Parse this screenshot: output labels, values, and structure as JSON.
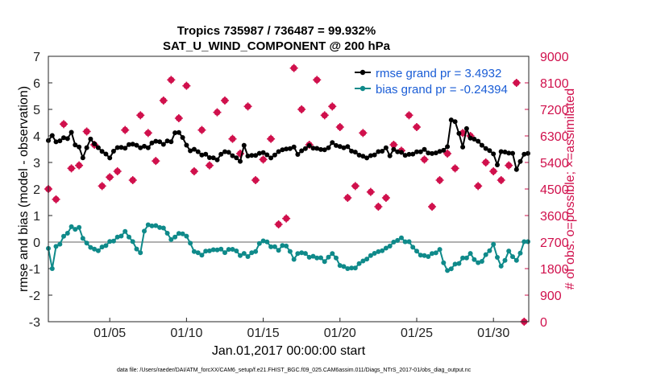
{
  "chart_data": {
    "type": "line",
    "title_line1": "Tropics 735987 / 736487 = 99.932%",
    "title_line2": "SAT_U_WIND_COMPONENT @ 200 hPa",
    "ylabel_left": "rmse and bias (model - observation)",
    "ylabel_right": "# of obs: o=possible; ×=assimilated",
    "xlabel": "Jan.01,2017 00:00:00 start",
    "footer": "data file: /Users/raeder/DAI/ATM_forcXX/CAM6_setup/f.e21.FHIST_BGC.f09_025.CAM6assim.011/Diags_NTrS_2017-01/obs_diag_output.nc",
    "ylim_left": [
      -3,
      7
    ],
    "yticks_left": [
      "-3",
      "-2",
      "-1",
      "0",
      "1",
      "2",
      "3",
      "4",
      "5",
      "6",
      "7"
    ],
    "ylim_right": [
      0,
      9000
    ],
    "yticks_right": [
      "0",
      "900",
      "1800",
      "2700",
      "3600",
      "4500",
      "5400",
      "6300",
      "7200",
      "8100",
      "9000"
    ],
    "xlim": [
      1,
      32.3
    ],
    "xticks": [
      {
        "day": 5,
        "label": "01/05"
      },
      {
        "day": 10,
        "label": "01/10"
      },
      {
        "day": 15,
        "label": "01/15"
      },
      {
        "day": 20,
        "label": "01/20"
      },
      {
        "day": 25,
        "label": "01/25"
      },
      {
        "day": 30,
        "label": "01/30"
      }
    ],
    "legend": {
      "placement": "top-right",
      "rmse_label": "rmse grand pr = 3.4932",
      "bias_label": "bias grand pr = -0.24394"
    },
    "colors": {
      "rmse": "#000000",
      "bias": "#0f8a8a",
      "obs": "#d0104c",
      "zero_line": "#b0b0b0",
      "legend_text": "#1a5dd6"
    },
    "rmse_keypoints": [
      [
        1.0,
        3.8
      ],
      [
        1.25,
        4.0
      ],
      [
        1.5,
        3.75
      ],
      [
        2.0,
        3.95
      ],
      [
        2.25,
        3.9
      ],
      [
        2.5,
        4.1
      ],
      [
        2.75,
        3.65
      ],
      [
        3.0,
        3.6
      ],
      [
        3.25,
        3.2
      ],
      [
        3.5,
        3.55
      ],
      [
        3.75,
        3.85
      ],
      [
        4.0,
        3.7
      ],
      [
        4.5,
        3.45
      ],
      [
        5.0,
        3.15
      ],
      [
        5.25,
        3.4
      ],
      [
        5.5,
        3.6
      ],
      [
        6.0,
        3.55
      ],
      [
        6.5,
        3.7
      ],
      [
        7.0,
        3.6
      ],
      [
        7.5,
        3.55
      ],
      [
        8.0,
        3.85
      ],
      [
        8.5,
        3.7
      ],
      [
        9.0,
        3.8
      ],
      [
        9.4,
        4.3
      ],
      [
        9.75,
        3.9
      ],
      [
        10.0,
        3.65
      ],
      [
        10.25,
        3.4
      ],
      [
        10.5,
        3.55
      ],
      [
        10.75,
        3.4
      ],
      [
        11.0,
        3.3
      ],
      [
        11.5,
        3.2
      ],
      [
        12.0,
        3.15
      ],
      [
        12.5,
        3.4
      ],
      [
        13.0,
        3.3
      ],
      [
        13.5,
        3.05
      ],
      [
        13.75,
        3.6
      ],
      [
        14.0,
        3.25
      ],
      [
        14.5,
        3.3
      ],
      [
        15.0,
        3.35
      ],
      [
        15.5,
        3.2
      ],
      [
        16.0,
        3.4
      ],
      [
        16.5,
        3.5
      ],
      [
        17.0,
        3.6
      ],
      [
        17.25,
        3.3
      ],
      [
        17.5,
        3.4
      ],
      [
        18.0,
        3.65
      ],
      [
        18.5,
        3.5
      ],
      [
        19.0,
        3.45
      ],
      [
        19.5,
        3.75
      ],
      [
        20.0,
        3.55
      ],
      [
        20.5,
        3.6
      ],
      [
        21.0,
        3.35
      ],
      [
        21.5,
        3.2
      ],
      [
        22.0,
        3.25
      ],
      [
        22.5,
        3.35
      ],
      [
        23.0,
        3.55
      ],
      [
        23.25,
        3.3
      ],
      [
        23.5,
        3.45
      ],
      [
        24.0,
        3.35
      ],
      [
        24.5,
        3.3
      ],
      [
        25.0,
        3.35
      ],
      [
        25.5,
        3.5
      ],
      [
        26.0,
        3.3
      ],
      [
        26.5,
        3.4
      ],
      [
        27.0,
        3.6
      ],
      [
        27.25,
        4.6
      ],
      [
        27.5,
        4.5
      ],
      [
        27.75,
        4.1
      ],
      [
        28.0,
        3.6
      ],
      [
        28.25,
        4.3
      ],
      [
        28.5,
        3.9
      ],
      [
        29.0,
        3.8
      ],
      [
        29.5,
        3.55
      ],
      [
        30.0,
        3.3
      ],
      [
        30.25,
        2.9
      ],
      [
        30.5,
        3.45
      ],
      [
        31.0,
        3.35
      ],
      [
        31.25,
        3.3
      ],
      [
        31.5,
        2.75
      ],
      [
        32.0,
        3.35
      ],
      [
        32.25,
        3.3
      ]
    ],
    "bias_keypoints": [
      [
        1.0,
        -0.3
      ],
      [
        1.25,
        -1.0
      ],
      [
        1.5,
        -0.2
      ],
      [
        2.0,
        0.2
      ],
      [
        2.5,
        0.5
      ],
      [
        3.0,
        0.55
      ],
      [
        3.25,
        0.2
      ],
      [
        3.5,
        -0.1
      ],
      [
        4.0,
        -0.3
      ],
      [
        4.5,
        -0.2
      ],
      [
        5.0,
        -0.05
      ],
      [
        5.5,
        0.2
      ],
      [
        6.0,
        0.35
      ],
      [
        6.5,
        0.0
      ],
      [
        7.0,
        -0.4
      ],
      [
        7.25,
        0.4
      ],
      [
        7.5,
        0.6
      ],
      [
        8.0,
        0.65
      ],
      [
        8.5,
        0.5
      ],
      [
        9.0,
        0.1
      ],
      [
        9.5,
        0.35
      ],
      [
        10.0,
        0.2
      ],
      [
        10.5,
        -0.3
      ],
      [
        11.0,
        -0.5
      ],
      [
        11.5,
        -0.3
      ],
      [
        12.0,
        -0.25
      ],
      [
        12.5,
        -0.4
      ],
      [
        13.0,
        -0.2
      ],
      [
        13.5,
        -0.5
      ],
      [
        14.0,
        -0.5
      ],
      [
        14.5,
        -0.3
      ],
      [
        15.0,
        0.05
      ],
      [
        15.5,
        -0.1
      ],
      [
        16.0,
        -0.3
      ],
      [
        16.5,
        -0.1
      ],
      [
        17.0,
        -0.6
      ],
      [
        17.5,
        -0.4
      ],
      [
        18.0,
        -0.5
      ],
      [
        18.5,
        -0.6
      ],
      [
        19.0,
        -0.7
      ],
      [
        19.5,
        -0.4
      ],
      [
        20.0,
        -0.9
      ],
      [
        20.5,
        -0.95
      ],
      [
        21.0,
        -1.0
      ],
      [
        21.5,
        -0.7
      ],
      [
        22.0,
        -0.5
      ],
      [
        22.5,
        -0.4
      ],
      [
        23.0,
        -0.2
      ],
      [
        23.5,
        -0.05
      ],
      [
        24.0,
        0.15
      ],
      [
        24.5,
        0.0
      ],
      [
        25.0,
        -0.4
      ],
      [
        25.5,
        -0.5
      ],
      [
        26.0,
        -0.5
      ],
      [
        26.5,
        -0.3
      ],
      [
        27.0,
        -1.1
      ],
      [
        27.5,
        -0.9
      ],
      [
        28.0,
        -0.6
      ],
      [
        28.5,
        -0.5
      ],
      [
        29.0,
        -0.8
      ],
      [
        29.5,
        -0.5
      ],
      [
        30.0,
        -0.15
      ],
      [
        30.5,
        -0.9
      ],
      [
        31.0,
        -0.4
      ],
      [
        31.5,
        -0.7
      ],
      [
        32.0,
        0.0
      ],
      [
        32.25,
        0.0
      ]
    ],
    "obs_points": [
      [
        1.0,
        4500
      ],
      [
        1.5,
        4150
      ],
      [
        2.0,
        6700
      ],
      [
        2.5,
        5200
      ],
      [
        3.0,
        5300
      ],
      [
        3.5,
        6450
      ],
      [
        4.0,
        6000
      ],
      [
        4.5,
        4600
      ],
      [
        5.0,
        4900
      ],
      [
        5.5,
        5100
      ],
      [
        6.0,
        6500
      ],
      [
        6.5,
        4800
      ],
      [
        7.0,
        7000
      ],
      [
        7.5,
        6400
      ],
      [
        8.0,
        5450
      ],
      [
        8.5,
        7500
      ],
      [
        9.0,
        8200
      ],
      [
        9.5,
        6900
      ],
      [
        10.0,
        8000
      ],
      [
        10.5,
        5100
      ],
      [
        11.0,
        6500
      ],
      [
        11.5,
        5300
      ],
      [
        12.0,
        7100
      ],
      [
        12.5,
        7500
      ],
      [
        13.0,
        6200
      ],
      [
        13.5,
        5700
      ],
      [
        14.0,
        7300
      ],
      [
        14.5,
        4800
      ],
      [
        15.0,
        5500
      ],
      [
        15.5,
        6200
      ],
      [
        16.0,
        3300
      ],
      [
        16.5,
        3500
      ],
      [
        17.0,
        8600
      ],
      [
        17.5,
        7200
      ],
      [
        18.0,
        6000
      ],
      [
        18.5,
        8200
      ],
      [
        19.0,
        7000
      ],
      [
        19.5,
        7300
      ],
      [
        20.0,
        6600
      ],
      [
        20.5,
        4200
      ],
      [
        21.0,
        4600
      ],
      [
        21.5,
        6400
      ],
      [
        22.0,
        4400
      ],
      [
        22.5,
        3900
      ],
      [
        23.0,
        4200
      ],
      [
        23.5,
        6000
      ],
      [
        24.0,
        5800
      ],
      [
        24.5,
        7000
      ],
      [
        25.0,
        6600
      ],
      [
        25.5,
        5500
      ],
      [
        26.0,
        3900
      ],
      [
        26.5,
        4800
      ],
      [
        27.0,
        5700
      ],
      [
        27.5,
        5200
      ],
      [
        28.0,
        6400
      ],
      [
        28.5,
        6300
      ],
      [
        29.0,
        4600
      ],
      [
        29.5,
        5400
      ],
      [
        30.0,
        5100
      ],
      [
        30.5,
        4800
      ],
      [
        31.0,
        5300
      ],
      [
        31.5,
        8100
      ],
      [
        32.0,
        0
      ]
    ]
  }
}
